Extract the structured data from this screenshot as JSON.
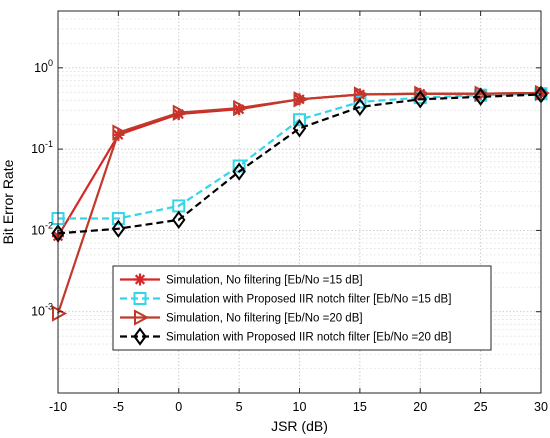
{
  "chart_data": {
    "type": "line",
    "title": "",
    "xlabel": "JSR (dB)",
    "ylabel": "Bit Error Rate",
    "xlim": [
      -10,
      30
    ],
    "ylim": [
      0.0001,
      5
    ],
    "yscale": "log",
    "grid": true,
    "minor_grid": true,
    "legend_position": "bottom-right",
    "x_ticks": [
      {
        "value": -10,
        "label": "-10"
      },
      {
        "value": -5,
        "label": "-5"
      },
      {
        "value": 0,
        "label": "0"
      },
      {
        "value": 5,
        "label": "5"
      },
      {
        "value": 10,
        "label": "10"
      },
      {
        "value": 15,
        "label": "15"
      },
      {
        "value": 20,
        "label": "20"
      },
      {
        "value": 25,
        "label": "25"
      },
      {
        "value": 30,
        "label": "30"
      }
    ],
    "y_ticks": [
      {
        "value": 0.001,
        "base": "10",
        "exp": "-3"
      },
      {
        "value": 0.01,
        "base": "10",
        "exp": "-2"
      },
      {
        "value": 0.1,
        "base": "10",
        "exp": "-1"
      },
      {
        "value": 1,
        "base": "10",
        "exp": "0"
      }
    ],
    "x": [
      -10,
      -5,
      0,
      5,
      10,
      15,
      20,
      25,
      30
    ],
    "series": [
      {
        "name": "Simulation, No filtering [Eb/No =15 dB]",
        "color": "#d62728",
        "marker": "asterisk",
        "dash": "solid",
        "values": [
          0.0085,
          0.15,
          0.27,
          0.31,
          0.41,
          0.47,
          0.48,
          0.48,
          0.49
        ]
      },
      {
        "name": "Simulation with Proposed IIR notch filter [Eb/No =15 dB]",
        "color": "#33d6e8",
        "marker": "square",
        "dash": "dashed",
        "values": [
          0.014,
          0.014,
          0.02,
          0.062,
          0.23,
          0.38,
          0.43,
          0.46,
          0.48
        ]
      },
      {
        "name": "Simulation, No filtering [Eb/No =20 dB]",
        "color": "#c0392b",
        "marker": "triangle-right",
        "dash": "solid",
        "values": [
          0.00095,
          0.16,
          0.28,
          0.32,
          0.41,
          0.47,
          0.48,
          0.48,
          0.49
        ]
      },
      {
        "name": "Simulation with Proposed IIR notch filter [Eb/No =20 dB]",
        "color": "#000000",
        "marker": "diamond",
        "dash": "dashed",
        "values": [
          0.0092,
          0.0105,
          0.0135,
          0.053,
          0.18,
          0.33,
          0.41,
          0.44,
          0.47
        ]
      }
    ]
  }
}
